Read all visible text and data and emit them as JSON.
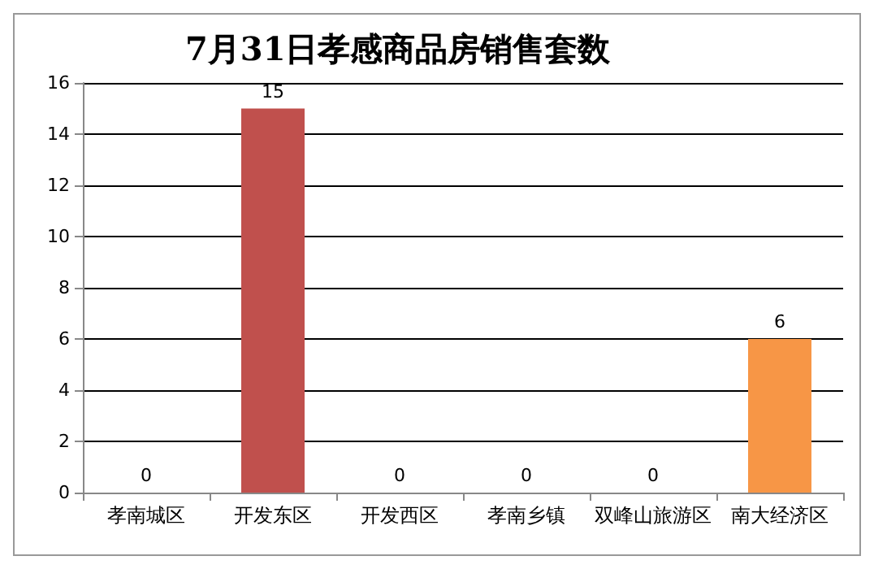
{
  "chart_data": {
    "type": "bar",
    "title": "7月31日孝感商品房销售套数",
    "categories": [
      "孝南城区",
      "开发东区",
      "开发西区",
      "孝南乡镇",
      "双峰山旅游区",
      "南大经济区"
    ],
    "values": [
      0,
      15,
      0,
      0,
      0,
      6
    ],
    "colors": [
      "#c0504d",
      "#c0504d",
      "#c0504d",
      "#c0504d",
      "#c0504d",
      "#f79646"
    ],
    "ylim": [
      0,
      16
    ],
    "yticks": [
      0,
      2,
      4,
      6,
      8,
      10,
      12,
      14,
      16
    ],
    "grid": "y",
    "data_labels": true
  }
}
